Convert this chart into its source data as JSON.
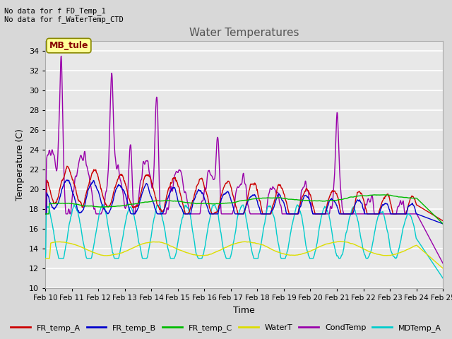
{
  "title": "Water Temperatures",
  "xlabel": "Time",
  "ylabel": "Temperature (C)",
  "ylim": [
    10,
    35
  ],
  "yticks": [
    10,
    12,
    14,
    16,
    18,
    20,
    22,
    24,
    26,
    28,
    30,
    32,
    34
  ],
  "annotation_text": "No data for f FD_Temp_1\nNo data for f_WaterTemp_CTD",
  "label_box_text": "MB_tule",
  "background_color": "#d8d8d8",
  "plot_bg_color": "#e8e8e8",
  "grid_color": "#ffffff",
  "colors": {
    "FR_temp_A": "#cc0000",
    "FR_temp_B": "#0000cc",
    "FR_temp_C": "#00bb00",
    "WaterT": "#dddd00",
    "CondTemp": "#9900aa",
    "MDTemp_A": "#00cccc"
  },
  "x_tick_labels": [
    "Feb 10",
    "Feb 11",
    "Feb 12",
    "Feb 13",
    "Feb 14",
    "Feb 15",
    "Feb 16",
    "Feb 17",
    "Feb 18",
    "Feb 19",
    "Feb 20",
    "Feb 21",
    "Feb 22",
    "Feb 23",
    "Feb 24",
    "Feb 25"
  ],
  "n_days": 15,
  "pts_per_day": 96
}
